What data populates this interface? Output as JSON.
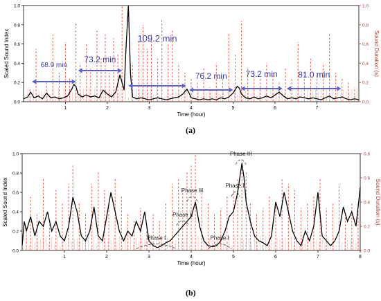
{
  "chart_data": [
    {
      "panel": "(a)",
      "type": "line",
      "xlabel": "Time (hour)",
      "ylabel": "Scaled Sound Index",
      "y2label": "Sound Duration (s)",
      "xlim": [
        0,
        8
      ],
      "ylim": [
        0,
        1.0
      ],
      "y2lim": [
        0,
        1.0
      ],
      "x_ticks": [
        "1",
        "2",
        "3",
        "4",
        "5",
        "6",
        "7"
      ],
      "y_ticks": [
        "0.0",
        "0.2",
        "0.4",
        "0.6",
        "0.8",
        "1.0"
      ],
      "y2_ticks": [
        "0.0",
        "0.2",
        "0.4",
        "0.6",
        "0.8",
        "1.0"
      ],
      "colors": {
        "index": "#000000",
        "duration": "#e8746a",
        "arrow": "#5b63c6",
        "text": "#3a3fa8"
      },
      "series": [
        {
          "name": "Scaled Sound Index",
          "x": [
            0.0,
            0.1,
            0.17,
            0.25,
            0.35,
            0.45,
            0.55,
            0.65,
            0.75,
            0.85,
            0.95,
            1.05,
            1.15,
            1.2,
            1.25,
            1.3,
            1.4,
            1.5,
            1.6,
            1.7,
            1.8,
            1.9,
            2.0,
            2.1,
            2.2,
            2.3,
            2.4,
            2.45,
            2.5,
            2.55,
            2.6,
            2.7,
            2.8,
            2.9,
            3.0,
            3.1,
            3.2,
            3.3,
            3.4,
            3.5,
            3.6,
            3.7,
            3.8,
            3.9,
            3.95,
            4.0,
            4.1,
            4.2,
            4.3,
            4.4,
            4.5,
            4.6,
            4.7,
            4.8,
            4.9,
            5.0,
            5.1,
            5.15,
            5.2,
            5.3,
            5.4,
            5.5,
            5.6,
            5.7,
            5.8,
            5.9,
            6.0,
            6.1,
            6.2,
            6.3,
            6.4,
            6.5,
            6.6,
            6.7,
            6.8,
            6.9,
            7.0,
            7.1,
            7.2,
            7.3,
            7.4,
            7.5,
            7.6,
            7.7,
            7.8,
            7.9,
            8.0
          ],
          "y": [
            0.03,
            0.05,
            0.1,
            0.04,
            0.06,
            0.03,
            0.09,
            0.04,
            0.05,
            0.03,
            0.04,
            0.06,
            0.13,
            0.18,
            0.16,
            0.08,
            0.05,
            0.07,
            0.05,
            0.06,
            0.04,
            0.12,
            0.08,
            0.05,
            0.1,
            0.28,
            0.12,
            0.6,
            1.0,
            0.3,
            0.05,
            0.03,
            0.04,
            0.03,
            0.02,
            0.03,
            0.04,
            0.03,
            0.02,
            0.03,
            0.04,
            0.05,
            0.08,
            0.13,
            0.09,
            0.04,
            0.03,
            0.02,
            0.03,
            0.02,
            0.03,
            0.02,
            0.04,
            0.03,
            0.05,
            0.09,
            0.16,
            0.14,
            0.08,
            0.04,
            0.03,
            0.05,
            0.03,
            0.04,
            0.06,
            0.04,
            0.07,
            0.1,
            0.06,
            0.03,
            0.04,
            0.03,
            0.05,
            0.04,
            0.03,
            0.04,
            0.03,
            0.02,
            0.04,
            0.06,
            0.03,
            0.04,
            0.05,
            0.03,
            0.02,
            0.03,
            0.02
          ]
        },
        {
          "name": "Sound Duration (s)",
          "x": [
            0.15,
            0.3,
            0.55,
            0.7,
            0.85,
            1.0,
            1.1,
            1.25,
            1.35,
            1.5,
            1.6,
            1.75,
            1.85,
            1.95,
            2.05,
            2.15,
            2.25,
            2.35,
            2.6,
            2.75,
            2.85,
            2.95,
            3.05,
            3.2,
            3.3,
            3.45,
            3.55,
            3.7,
            3.85,
            4.0,
            4.15,
            4.3,
            4.45,
            4.6,
            4.75,
            4.9,
            5.05,
            5.2,
            5.35,
            5.5,
            5.65,
            5.8,
            5.95,
            6.1,
            6.25,
            6.4,
            6.55,
            6.7,
            6.85,
            7.0,
            7.15,
            7.3,
            7.45,
            7.6,
            7.75,
            7.9
          ],
          "y": [
            0.15,
            0.55,
            0.2,
            0.7,
            0.3,
            0.62,
            0.25,
            0.82,
            0.4,
            0.6,
            0.35,
            0.74,
            0.45,
            0.7,
            0.3,
            0.66,
            0.5,
            1.0,
            0.4,
            0.65,
            0.8,
            0.55,
            0.7,
            0.45,
            0.86,
            0.6,
            0.74,
            0.4,
            0.3,
            0.25,
            0.2,
            0.35,
            0.15,
            0.4,
            0.25,
            0.72,
            0.5,
            0.84,
            0.35,
            0.3,
            0.25,
            0.4,
            0.3,
            0.2,
            0.35,
            0.25,
            0.62,
            0.3,
            0.45,
            0.3,
            0.4,
            0.72,
            0.3,
            0.25,
            0.2,
            0.15
          ]
        }
      ],
      "intervals": [
        {
          "label": "68.9 min",
          "x0": 0.2,
          "x1": 1.25
        },
        {
          "label": "73.2 min",
          "x0": 1.3,
          "x1": 2.35
        },
        {
          "label": "109.2 min",
          "x0": 2.5,
          "x1": 3.88
        },
        {
          "label": "76.2 min",
          "x0": 3.95,
          "x1": 5.0
        },
        {
          "label": "73.2 min",
          "x0": 5.18,
          "x1": 6.18
        },
        {
          "label": "81.0 min",
          "x0": 6.28,
          "x1": 7.58
        }
      ]
    },
    {
      "panel": "(b)",
      "type": "line",
      "xlabel": "Time (hour)",
      "ylabel": "Scaled Sound Index",
      "y2label": "Sound Duration (s)",
      "xlim": [
        0,
        8
      ],
      "ylim": [
        0,
        1.0
      ],
      "y2lim": [
        0,
        0.8
      ],
      "x_ticks": [
        "1",
        "2",
        "3",
        "4",
        "5",
        "6",
        "7",
        "8"
      ],
      "y_ticks": [
        "0.0",
        "0.2",
        "0.4",
        "0.6",
        "0.8",
        "1.0"
      ],
      "y2_ticks": [
        "0.0",
        "0.2",
        "0.4",
        "0.6",
        "0.8"
      ],
      "colors": {
        "index": "#000000",
        "duration": "#e8746a",
        "annot": "#555555"
      },
      "series": [
        {
          "name": "Scaled Sound Index",
          "x": [
            0.0,
            0.05,
            0.1,
            0.2,
            0.3,
            0.4,
            0.5,
            0.6,
            0.7,
            0.8,
            0.9,
            1.0,
            1.1,
            1.2,
            1.3,
            1.4,
            1.5,
            1.6,
            1.7,
            1.8,
            1.9,
            2.0,
            2.1,
            2.2,
            2.3,
            2.4,
            2.5,
            2.6,
            2.7,
            2.8,
            2.9,
            3.0,
            3.1,
            3.2,
            3.3,
            3.4,
            3.5,
            3.6,
            3.7,
            3.8,
            3.9,
            4.0,
            4.1,
            4.2,
            4.3,
            4.4,
            4.5,
            4.6,
            4.7,
            4.8,
            4.9,
            5.0,
            5.1,
            5.2,
            5.25,
            5.3,
            5.4,
            5.5,
            5.6,
            5.7,
            5.8,
            5.9,
            6.0,
            6.1,
            6.2,
            6.3,
            6.4,
            6.5,
            6.6,
            6.7,
            6.8,
            6.9,
            7.0,
            7.1,
            7.2,
            7.3,
            7.4,
            7.5,
            7.6,
            7.7,
            7.8,
            7.9,
            8.0
          ],
          "y": [
            0.05,
            0.3,
            0.2,
            0.35,
            0.15,
            0.3,
            0.25,
            0.4,
            0.2,
            0.3,
            0.15,
            0.1,
            0.25,
            0.55,
            0.4,
            0.15,
            0.1,
            0.2,
            0.45,
            0.15,
            0.1,
            0.35,
            0.6,
            0.4,
            0.2,
            0.1,
            0.2,
            0.15,
            0.3,
            0.2,
            0.4,
            0.1,
            0.05,
            0.03,
            0.05,
            0.08,
            0.1,
            0.15,
            0.2,
            0.25,
            0.3,
            0.35,
            0.5,
            0.25,
            0.1,
            0.05,
            0.04,
            0.05,
            0.1,
            0.2,
            0.35,
            0.4,
            0.6,
            0.9,
            0.75,
            0.5,
            0.3,
            0.15,
            0.1,
            0.08,
            0.05,
            0.15,
            0.5,
            0.35,
            0.6,
            0.4,
            0.2,
            0.1,
            0.05,
            0.2,
            0.1,
            0.25,
            0.6,
            0.15,
            0.1,
            0.05,
            0.1,
            0.2,
            0.45,
            0.3,
            0.4,
            0.25,
            0.65
          ]
        },
        {
          "name": "Sound Duration (s)",
          "x": [
            0.1,
            0.2,
            0.35,
            0.5,
            0.65,
            0.8,
            0.95,
            1.1,
            1.2,
            1.35,
            1.5,
            1.65,
            1.8,
            1.95,
            2.05,
            2.2,
            2.35,
            2.5,
            2.65,
            2.8,
            2.95,
            3.1,
            3.25,
            3.4,
            3.55,
            3.7,
            3.8,
            3.9,
            4.0,
            4.1,
            4.25,
            4.4,
            4.55,
            4.7,
            4.85,
            5.0,
            5.1,
            5.2,
            5.3,
            5.4,
            5.55,
            5.7,
            5.85,
            6.0,
            6.15,
            6.3,
            6.45,
            6.6,
            6.75,
            6.9,
            7.05,
            7.2,
            7.35,
            7.5,
            7.65,
            7.8,
            7.95
          ],
          "y": [
            0.2,
            0.45,
            0.3,
            0.6,
            0.25,
            0.5,
            0.4,
            0.55,
            0.7,
            0.4,
            0.3,
            0.55,
            0.65,
            0.5,
            0.35,
            0.6,
            0.45,
            0.3,
            0.25,
            0.35,
            0.2,
            0.3,
            0.25,
            0.4,
            0.55,
            0.6,
            0.5,
            0.65,
            0.7,
            0.8,
            0.5,
            0.4,
            0.3,
            0.35,
            0.45,
            0.5,
            0.6,
            0.75,
            0.65,
            0.4,
            0.3,
            0.35,
            0.45,
            0.4,
            0.6,
            0.55,
            0.5,
            0.35,
            0.4,
            0.45,
            0.6,
            0.35,
            0.4,
            0.55,
            0.3,
            0.4,
            0.35
          ]
        }
      ],
      "annotations": [
        {
          "label": "Phase I",
          "x0": 2.7,
          "x1": 3.65,
          "y": 0.06
        },
        {
          "label": "Phase II",
          "x0": 3.65,
          "x1": 3.95,
          "y": 0.3
        },
        {
          "label": "Phase III",
          "x0": 3.9,
          "x1": 4.15,
          "y": 0.55
        },
        {
          "label": "Phase I",
          "x0": 4.4,
          "x1": 4.95,
          "y": 0.06
        },
        {
          "label": "Phase II",
          "x0": 4.95,
          "x1": 5.15,
          "y": 0.6
        },
        {
          "label": "Phase III",
          "x0": 5.05,
          "x1": 5.3,
          "y": 0.93
        }
      ]
    }
  ],
  "labels": {
    "a": "(a)",
    "b": "(b)"
  }
}
